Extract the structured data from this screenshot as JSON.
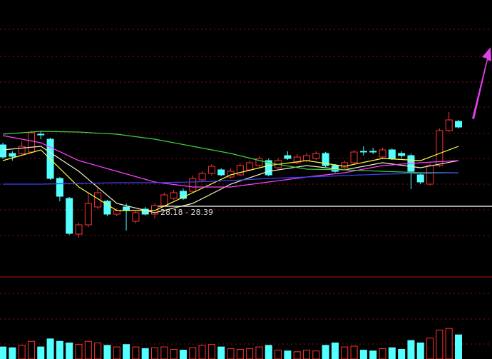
{
  "chart_data": {
    "type": "candlestick",
    "annotation": "28.18 - 28.39",
    "ylim": [
      24.66,
      40.18
    ],
    "up_color": "#ff3232",
    "down_color": "#54ffff",
    "ref_line": 28.62,
    "ref_color": "#d8d8d8",
    "candles": {
      "open": [
        32.06,
        31.58,
        31.58,
        31.66,
        32.66,
        32.38,
        30.18,
        29.06,
        27.06,
        27.58,
        28.58,
        28.9,
        28.18,
        28.58,
        27.78,
        28.46,
        28.18,
        28.66,
        29.06,
        29.46,
        29.46,
        30.1,
        30.46,
        30.66,
        30.26,
        30.38,
        30.66,
        30.9,
        31.18,
        30.78,
        31.46,
        31.06,
        31.18,
        31.3,
        31.58,
        30.9,
        30.78,
        31.06,
        31.7,
        31.7,
        31.38,
        31.78,
        31.58,
        31.46,
        30.38,
        29.86,
        30.9,
        32.86,
        33.38
      ],
      "high": [
        32.18,
        31.7,
        32.26,
        32.86,
        32.86,
        32.46,
        30.26,
        29.14,
        27.7,
        29.38,
        29.7,
        28.98,
        28.5,
        28.78,
        28.38,
        28.58,
        28.78,
        29.38,
        29.54,
        29.62,
        30.34,
        30.58,
        30.98,
        30.74,
        30.74,
        31.02,
        31.18,
        31.42,
        31.3,
        31.3,
        31.7,
        31.54,
        31.62,
        31.7,
        31.66,
        30.98,
        31.18,
        31.78,
        31.98,
        31.9,
        31.9,
        31.86,
        31.7,
        31.58,
        30.5,
        31.02,
        32.98,
        33.9,
        33.46
      ],
      "low": [
        31.26,
        31.18,
        31.46,
        31.58,
        32.38,
        30.1,
        28.9,
        27.02,
        26.86,
        27.46,
        28.46,
        28.06,
        28.06,
        27.26,
        27.66,
        28.1,
        27.94,
        28.58,
        28.98,
        28.98,
        29.38,
        30.02,
        30.34,
        30.3,
        30.18,
        30.3,
        30.58,
        30.82,
        30.3,
        30.7,
        31.22,
        30.98,
        31.1,
        31.22,
        30.82,
        30.5,
        30.7,
        30.98,
        31.46,
        31.54,
        31.3,
        31.22,
        31.3,
        29.58,
        29.86,
        29.78,
        30.82,
        32.78,
        32.98
      ],
      "close": [
        31.38,
        31.42,
        31.98,
        32.74,
        32.62,
        30.18,
        29.18,
        27.1,
        27.58,
        28.78,
        29.38,
        28.18,
        28.38,
        28.38,
        28.26,
        28.18,
        28.66,
        29.26,
        29.38,
        29.06,
        30.18,
        30.46,
        30.86,
        30.38,
        30.58,
        30.9,
        31.06,
        31.3,
        30.38,
        31.18,
        31.3,
        31.38,
        31.46,
        31.58,
        30.9,
        30.58,
        31.06,
        31.66,
        31.66,
        31.66,
        31.78,
        31.3,
        31.46,
        30.58,
        29.98,
        30.9,
        32.86,
        33.46,
        33.06
      ]
    },
    "line_x": [
      0,
      4,
      8,
      12,
      16,
      20,
      24,
      28,
      32,
      36,
      40,
      44,
      48
    ],
    "lines": [
      {
        "color": "#ffff40",
        "values": [
          31.18,
          31.78,
          29.7,
          28.38,
          28.38,
          29.38,
          30.38,
          30.9,
          31.18,
          30.86,
          31.3,
          31.18,
          31.98
        ]
      },
      {
        "color": "#f0f0c0",
        "values": [
          31.78,
          31.98,
          30.58,
          28.78,
          28.26,
          28.78,
          29.86,
          30.58,
          30.9,
          30.66,
          31.06,
          30.78,
          31.18
        ]
      },
      {
        "color": "#ff40ff",
        "values": [
          32.58,
          32.18,
          31.18,
          30.58,
          29.98,
          29.7,
          29.7,
          29.98,
          30.26,
          30.5,
          30.9,
          31.06,
          31.18
        ]
      },
      {
        "color": "#40d040",
        "values": [
          32.66,
          32.82,
          32.78,
          32.66,
          32.38,
          31.98,
          31.58,
          31.06,
          30.7,
          30.66,
          30.58,
          30.5,
          30.5
        ]
      },
      {
        "color": "#4040ff",
        "values": [
          29.86,
          29.86,
          29.9,
          29.94,
          29.94,
          29.98,
          30.06,
          30.18,
          30.26,
          30.34,
          30.42,
          30.46,
          30.5
        ]
      }
    ],
    "volume": {
      "vlim": [
        0,
        110
      ],
      "values": [
        30,
        28,
        34,
        44,
        30,
        50,
        44,
        40,
        36,
        44,
        40,
        34,
        30,
        36,
        30,
        26,
        28,
        30,
        24,
        22,
        28,
        34,
        36,
        30,
        26,
        24,
        26,
        30,
        34,
        22,
        20,
        18,
        22,
        20,
        34,
        40,
        30,
        32,
        22,
        20,
        26,
        28,
        24,
        46,
        40,
        52,
        72,
        76,
        60
      ]
    }
  }
}
